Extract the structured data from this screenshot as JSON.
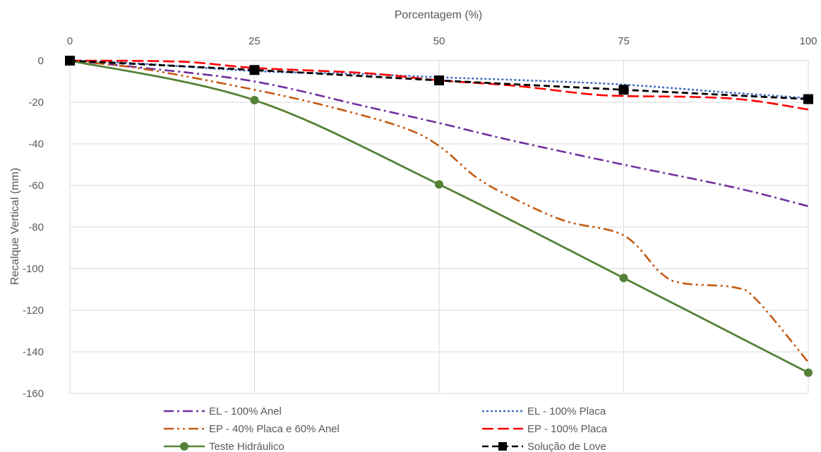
{
  "chart_data": {
    "type": "line",
    "title": "",
    "xlabel": "Porcentagem (%)",
    "ylabel": "Recalque Vertical (mm)",
    "xlim": [
      0,
      100
    ],
    "ylim": [
      -160,
      0
    ],
    "x_ticks": [
      0,
      25,
      50,
      75,
      100
    ],
    "y_ticks": [
      0,
      -20,
      -40,
      -60,
      -80,
      -100,
      -120,
      -140,
      -160
    ],
    "x_axis_position": "top",
    "grid": true,
    "legend_position": "bottom",
    "series": [
      {
        "name": "EL - 100% Anel",
        "color": "#7030A0",
        "dash": "dash-dot",
        "marker": "none",
        "x": [
          0,
          10,
          25,
          40,
          50,
          60,
          75,
          90,
          100
        ],
        "y": [
          0,
          -3.5,
          -10,
          -22,
          -30,
          -38.5,
          -50,
          -61,
          -70
        ]
      },
      {
        "name": "EL - 100% Placa",
        "color": "#4472C4",
        "dash": "dot",
        "marker": "none",
        "x": [
          0,
          10,
          25,
          40,
          50,
          62,
          75,
          88,
          100
        ],
        "y": [
          0,
          -1.5,
          -5,
          -6.5,
          -8,
          -9.5,
          -11.5,
          -15,
          -18
        ]
      },
      {
        "name": "EP - 40% Placa e 60% Anel",
        "color": "#C55A11",
        "dash": "dash-dot-dot",
        "marker": "none",
        "x": [
          0,
          10,
          25,
          35,
          45,
          50,
          55,
          60,
          67,
          75,
          80,
          83,
          90,
          93,
          100
        ],
        "y": [
          0,
          -4,
          -14,
          -22,
          -32,
          -41,
          -56,
          -66,
          -77,
          -84,
          -102,
          -107,
          -109,
          -115,
          -145
        ]
      },
      {
        "name": "EP - 100% Placa",
        "color": "#FF0000",
        "dash": "long-dash",
        "marker": "none",
        "x": [
          0,
          15,
          25,
          40,
          50,
          60,
          70,
          75,
          85,
          92,
          100
        ],
        "y": [
          0,
          -0.5,
          -3.5,
          -6,
          -9.5,
          -12,
          -16,
          -17,
          -17.5,
          -19,
          -23.5
        ]
      },
      {
        "name": "Teste Hidráulico",
        "color": "#548235",
        "dash": "solid",
        "marker": "circle",
        "x": [
          0,
          25,
          50,
          75,
          100
        ],
        "y": [
          0,
          -19,
          -59.5,
          -104.5,
          -150
        ]
      },
      {
        "name": "Solução de Love",
        "color": "#000000",
        "dash": "dash",
        "marker": "square",
        "x": [
          0,
          25,
          50,
          75,
          100
        ],
        "y": [
          0,
          -4.5,
          -9.5,
          -14,
          -18.5
        ]
      }
    ]
  }
}
